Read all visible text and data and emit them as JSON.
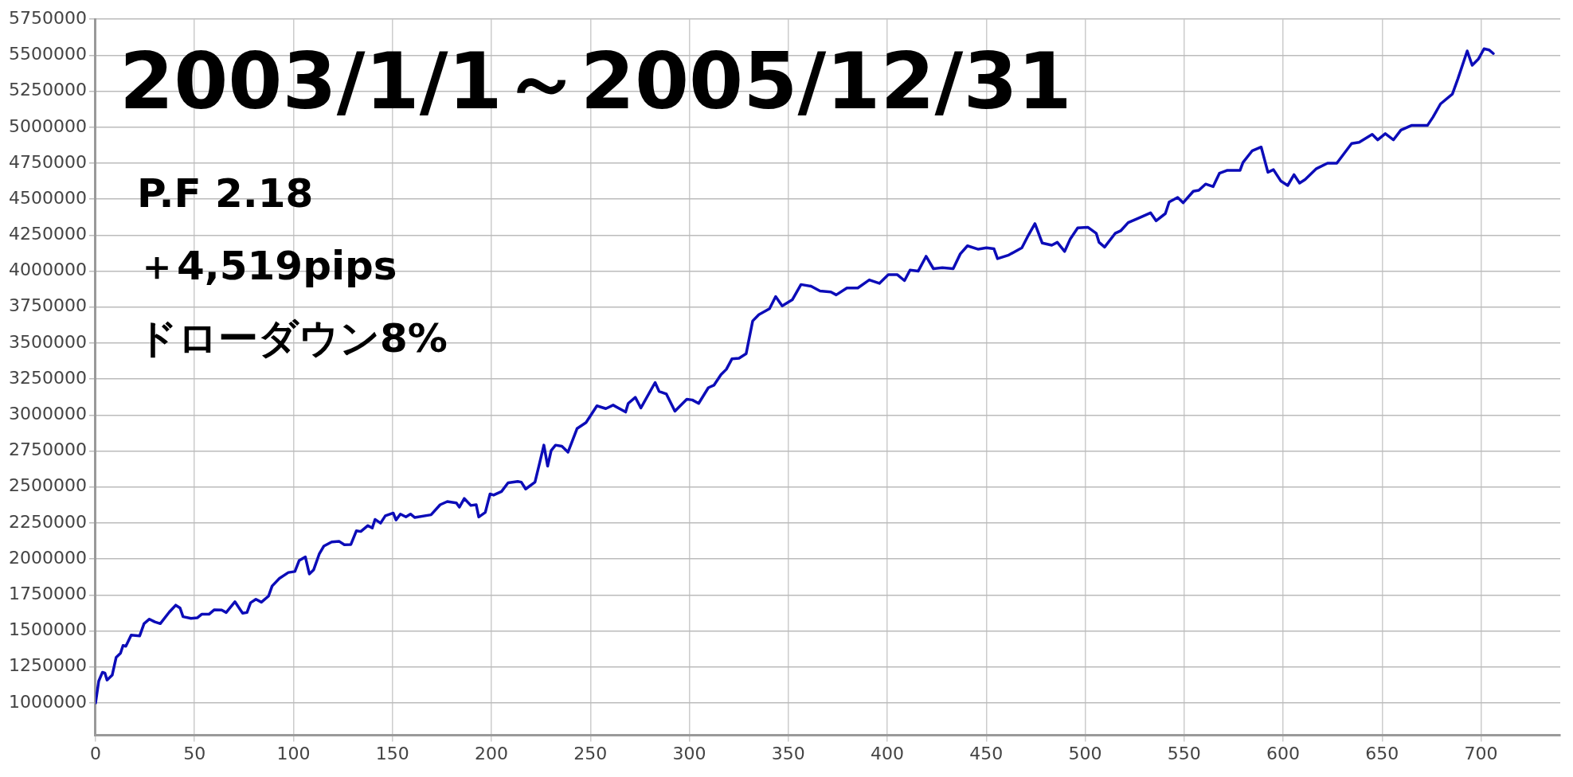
{
  "chart_data": {
    "type": "line",
    "title": "2003/1/1～2005/12/31",
    "annotations": [
      "P.F 2.18",
      "＋4,519pips",
      "ドローダウン8%"
    ],
    "xlim": [
      0,
      740
    ],
    "xticks": [
      0,
      50,
      100,
      150,
      200,
      250,
      300,
      350,
      400,
      450,
      500,
      550,
      600,
      650,
      700
    ],
    "ylim": [
      775000,
      5750000
    ],
    "yticks": [
      1000000,
      1250000,
      1500000,
      1750000,
      2000000,
      2250000,
      2500000,
      2750000,
      3000000,
      3250000,
      3500000,
      3750000,
      4000000,
      4250000,
      4500000,
      4750000,
      5000000,
      5250000,
      5500000,
      5750000
    ],
    "grid": true,
    "legend": false,
    "marker": "none",
    "line_style": "solid",
    "series": [
      {
        "color": "#0c0cb8",
        "x": [
          0,
          1.6,
          3.5,
          4.7,
          5.8,
          8.4,
          10.4,
          12.6,
          13.9,
          15.3,
          18,
          22.3,
          24.5,
          27.2,
          29.9,
          32.7,
          37.2,
          40.5,
          42.7,
          44.2,
          48.2,
          51.5,
          53.6,
          57.3,
          60,
          63.7,
          66,
          70.4,
          74.3,
          76.5,
          78.3,
          81,
          83.8,
          87.4,
          89.2,
          92.9,
          97.4,
          100.7,
          102.9,
          106,
          108,
          110.2,
          113,
          115.3,
          119.3,
          123,
          125.7,
          129,
          131.8,
          134,
          137.6,
          139.8,
          141.2,
          144,
          146.4,
          150.4,
          151.8,
          154,
          156.8,
          159.1,
          161.3,
          169.5,
          174.1,
          177.7,
          182.3,
          183.8,
          186.3,
          189.6,
          192.3,
          193.6,
          196.9,
          199.3,
          201.1,
          205.1,
          208.4,
          213.3,
          215.1,
          217.3,
          222,
          224.2,
          226.5,
          228.4,
          230.2,
          232.4,
          235.6,
          238.7,
          243.3,
          247.8,
          253.3,
          257.8,
          261.5,
          267.8,
          269.1,
          272.7,
          275.5,
          282.7,
          284.7,
          288.4,
          292.7,
          298.7,
          301.5,
          304.7,
          309.6,
          312.4,
          316,
          318.7,
          321.5,
          325.1,
          328.7,
          332,
          335.1,
          340.5,
          343.6,
          346.9,
          352,
          356.4,
          361.5,
          366,
          371.5,
          374.2,
          379.6,
          385.1,
          390.9,
          396,
          400.5,
          405.1,
          408.7,
          411.5,
          415.6,
          419.6,
          423.3,
          427.8,
          433.3,
          436.9,
          440.5,
          446,
          450.1,
          453.9,
          455.7,
          461.4,
          468,
          470.8,
          474.6,
          478.3,
          483.1,
          485.9,
          489.6,
          492.5,
          496.2,
          501.3,
          505.6,
          507,
          509.8,
          515.1,
          517.9,
          521.7,
          527.3,
          533,
          535.8,
          540.5,
          542.4,
          546.7,
          549.5,
          554.6,
          557.4,
          560.8,
          564.6,
          567.8,
          571.6,
          578.2,
          579.7,
          584.4,
          588.9,
          592.3,
          595.1,
          598.9,
          602.3,
          605.5,
          608.3,
          611.1,
          616.8,
          622.4,
          627.1,
          634.6,
          638.4,
          645,
          647.8,
          651.6,
          655.7,
          659.5,
          664.8,
          672.9,
          675.7,
          679.5,
          685.5,
          688.3,
          693,
          695.5,
          698.7,
          701.5,
          704,
          706.2
        ],
        "values": [
          1000000,
          1152000,
          1213000,
          1208000,
          1159000,
          1193000,
          1316000,
          1345000,
          1399000,
          1394000,
          1471000,
          1466000,
          1551000,
          1582000,
          1563000,
          1551000,
          1630000,
          1679000,
          1659000,
          1599000,
          1587000,
          1592000,
          1616000,
          1616000,
          1647000,
          1645000,
          1628000,
          1703000,
          1623000,
          1628000,
          1696000,
          1720000,
          1700000,
          1742000,
          1812000,
          1865000,
          1906000,
          1913000,
          1990000,
          2014000,
          1896000,
          1925000,
          2034000,
          2089000,
          2118000,
          2123000,
          2099000,
          2101000,
          2196000,
          2191000,
          2232000,
          2215000,
          2275000,
          2249000,
          2300000,
          2319000,
          2271000,
          2312000,
          2293000,
          2312000,
          2288000,
          2307000,
          2377000,
          2399000,
          2389000,
          2360000,
          2420000,
          2372000,
          2377000,
          2292000,
          2324000,
          2452000,
          2444000,
          2469000,
          2529000,
          2539000,
          2534000,
          2486000,
          2534000,
          2658000,
          2791000,
          2645000,
          2754000,
          2791000,
          2783000,
          2742000,
          2907000,
          2948000,
          3064000,
          3045000,
          3069000,
          3021000,
          3081000,
          3123000,
          3049000,
          3226000,
          3165000,
          3146000,
          3027000,
          3110000,
          3105000,
          3081000,
          3190000,
          3207000,
          3281000,
          3318000,
          3390000,
          3395000,
          3427000,
          3654000,
          3698000,
          3739000,
          3823000,
          3758000,
          3801000,
          3907000,
          3895000,
          3862000,
          3855000,
          3835000,
          3883000,
          3883000,
          3939000,
          3915000,
          3975000,
          3975000,
          3934000,
          4007000,
          4000000,
          4103000,
          4017000,
          4024000,
          4017000,
          4120000,
          4176000,
          4152000,
          4162000,
          4155000,
          4087000,
          4112000,
          4162000,
          4237000,
          4330000,
          4195000,
          4180000,
          4200000,
          4137000,
          4225000,
          4300000,
          4305000,
          4262000,
          4200000,
          4167000,
          4262000,
          4280000,
          4337000,
          4370000,
          4405000,
          4350000,
          4400000,
          4480000,
          4512000,
          4475000,
          4555000,
          4562000,
          4605000,
          4587000,
          4680000,
          4700000,
          4700000,
          4755000,
          4837000,
          4862000,
          4687000,
          4705000,
          4625000,
          4595000,
          4670000,
          4612000,
          4637000,
          4712000,
          4750000,
          4750000,
          4887000,
          4895000,
          4950000,
          4912000,
          4955000,
          4912000,
          4980000,
          5012000,
          5012000,
          5070000,
          5162000,
          5230000,
          5337000,
          5530000,
          5430000,
          5475000,
          5545000,
          5537000,
          5512000
        ]
      }
    ]
  }
}
